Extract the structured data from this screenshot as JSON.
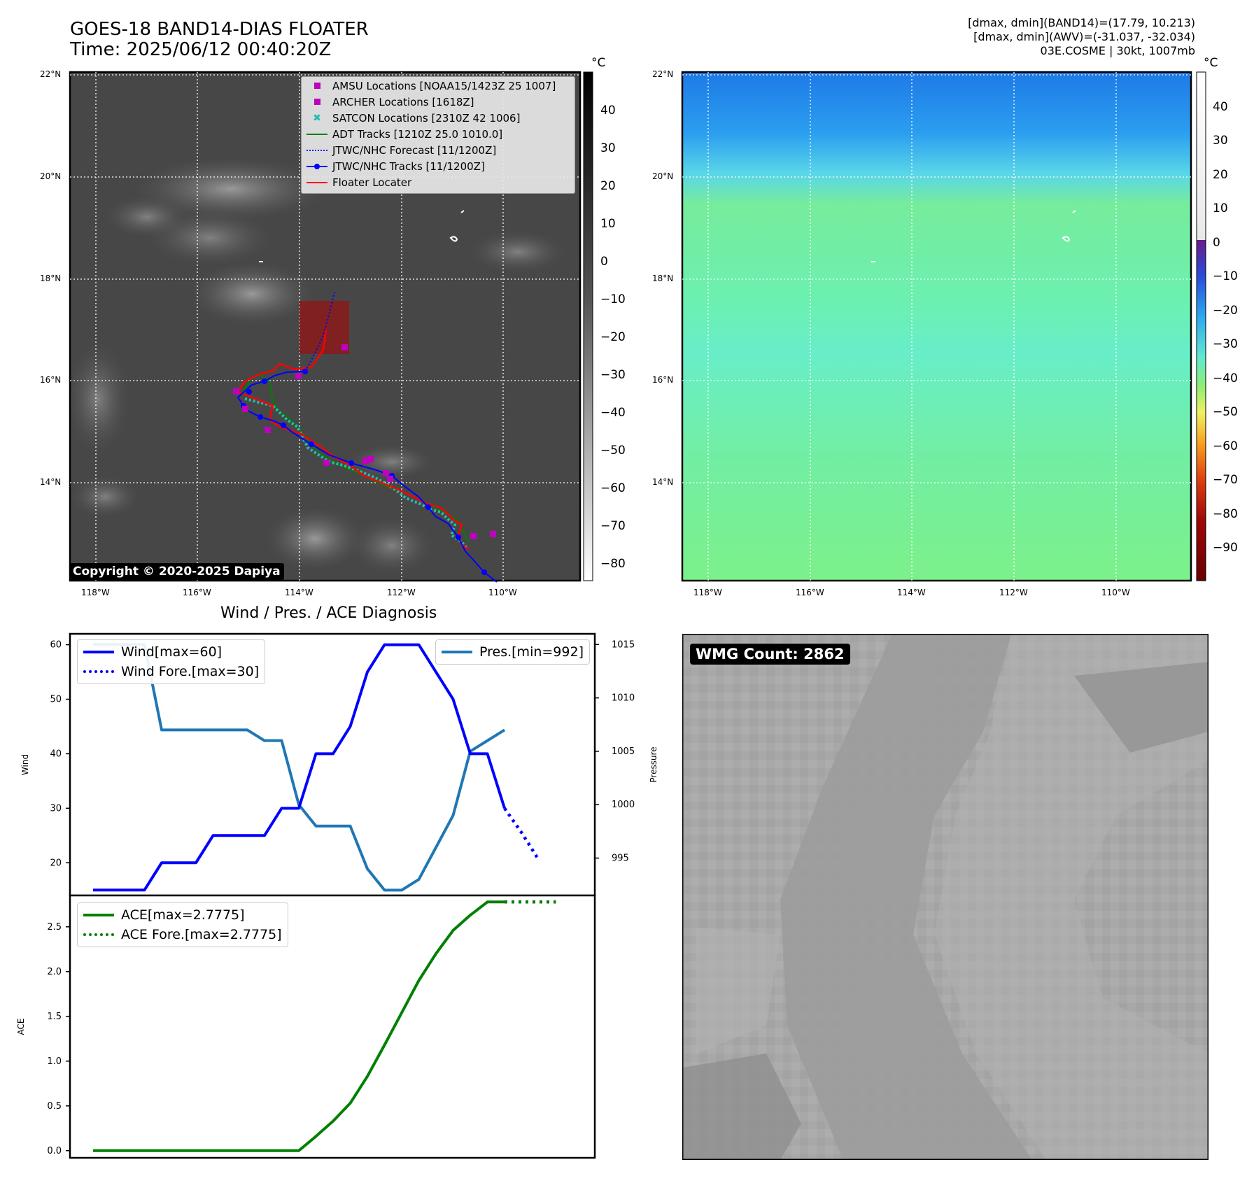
{
  "header": {
    "title_line1": "GOES-18 BAND14-DIAS FLOATER",
    "title_line2": "Time: 2025/06/12 00:40:20Z",
    "right_line1": "[dmax, dmin](BAND14)=(17.79, 10.213)",
    "right_line2": "[dmax, dmin](AWV)=(-31.037, -32.034)",
    "right_line3": "03E.COSME | 30kt, 1007mb"
  },
  "map": {
    "lat_labels": [
      "22°N",
      "20°N",
      "18°N",
      "16°N",
      "14°N"
    ],
    "lon_labels": [
      "118°W",
      "116°W",
      "114°W",
      "112°W",
      "110°W"
    ],
    "legend": [
      {
        "label": "AMSU Locations [NOAA15/1423Z 25 1007]",
        "symbol": "square",
        "color": "#c000c0"
      },
      {
        "label": "ARCHER Locations [1618Z]",
        "symbol": "square",
        "color": "#c000c0"
      },
      {
        "label": "SATCON Locations [2310Z 42 1006]",
        "symbol": "x",
        "color": "#20c0b0"
      },
      {
        "label": "ADT Tracks [1210Z 25.0 1010.0]",
        "symbol": "line",
        "color": "#008000"
      },
      {
        "label": "JTWC/NHC Forecast [11/1200Z]",
        "symbol": "dotted",
        "color": "#0000ff"
      },
      {
        "label": "JTWC/NHC Tracks [11/1200Z]",
        "symbol": "line-dot",
        "color": "#0000ff"
      },
      {
        "label": "Floater Locater",
        "symbol": "line",
        "color": "#ff0000"
      }
    ],
    "copyright": "Copyright © 2020-2025 Dapiya",
    "colorbar_unit": "°C",
    "colorbar1_ticks": [
      "40",
      "30",
      "20",
      "10",
      "0",
      "−10",
      "−20",
      "−30",
      "−40",
      "−50",
      "−60",
      "−70",
      "−80"
    ],
    "colorbar2_ticks": [
      "40",
      "30",
      "20",
      "10",
      "0",
      "−10",
      "−20",
      "−30",
      "−40",
      "−50",
      "−60",
      "−70",
      "−80",
      "−90"
    ]
  },
  "chart_data": {
    "type": "line",
    "title": "Wind / Pres. / ACE Diagnosis",
    "panels": [
      {
        "ylabel": "Wind",
        "ylim": [
          14,
          62
        ],
        "yticks": [
          20,
          30,
          40,
          50,
          60
        ],
        "series": [
          {
            "name": "Wind[max=60]",
            "style": "solid",
            "color": "#0000ff",
            "values": [
              15,
              15,
              15,
              15,
              20,
              20,
              20,
              25,
              25,
              25,
              25,
              30,
              30,
              40,
              40,
              45,
              55,
              60,
              60,
              60,
              55,
              50,
              40,
              40,
              30
            ]
          },
          {
            "name": "Wind Fore.[max=30]",
            "style": "dotted",
            "color": "#0000ff",
            "start_index": 24,
            "values": [
              30,
              25.5,
              20.5
            ]
          }
        ]
      },
      {
        "ylabel": "Pressure",
        "ylim": [
          991.5,
          1016
        ],
        "yticks": [
          995,
          1000,
          1005,
          1010,
          1015
        ],
        "series": [
          {
            "name": "Pres.[min=992]",
            "style": "solid",
            "color": "#1f77b4",
            "values": [
              1015,
              1015,
              1015,
              1015,
              1007,
              1007,
              1007,
              1007,
              1007,
              1007,
              1006,
              1006,
              1000,
              998,
              998,
              998,
              994,
              992,
              992,
              993,
              996,
              999,
              1005,
              1006,
              1007
            ]
          }
        ]
      },
      {
        "ylabel": "ACE",
        "ylim": [
          -0.08,
          2.85
        ],
        "yticks": [
          0.0,
          0.5,
          1.0,
          1.5,
          2.0,
          2.5
        ],
        "ytick_labels": [
          "0.0",
          "0.5",
          "1.0",
          "1.5",
          "2.0",
          "2.5"
        ],
        "series": [
          {
            "name": "ACE[max=2.7775]",
            "style": "solid",
            "color": "#008000",
            "values": [
              0,
              0,
              0,
              0,
              0,
              0,
              0,
              0,
              0,
              0,
              0,
              0,
              0,
              0.16,
              0.33,
              0.53,
              0.83,
              1.18,
              1.54,
              1.9,
              2.2,
              2.46,
              2.63,
              2.7775,
              2.7775
            ]
          },
          {
            "name": "ACE Fore.[max=2.7775]",
            "style": "dotted",
            "color": "#008000",
            "start_index": 24,
            "values": [
              2.7775,
              2.7775,
              2.7775,
              2.7775
            ]
          }
        ]
      }
    ]
  },
  "wmg": {
    "label": "WMG Count: 2862"
  }
}
